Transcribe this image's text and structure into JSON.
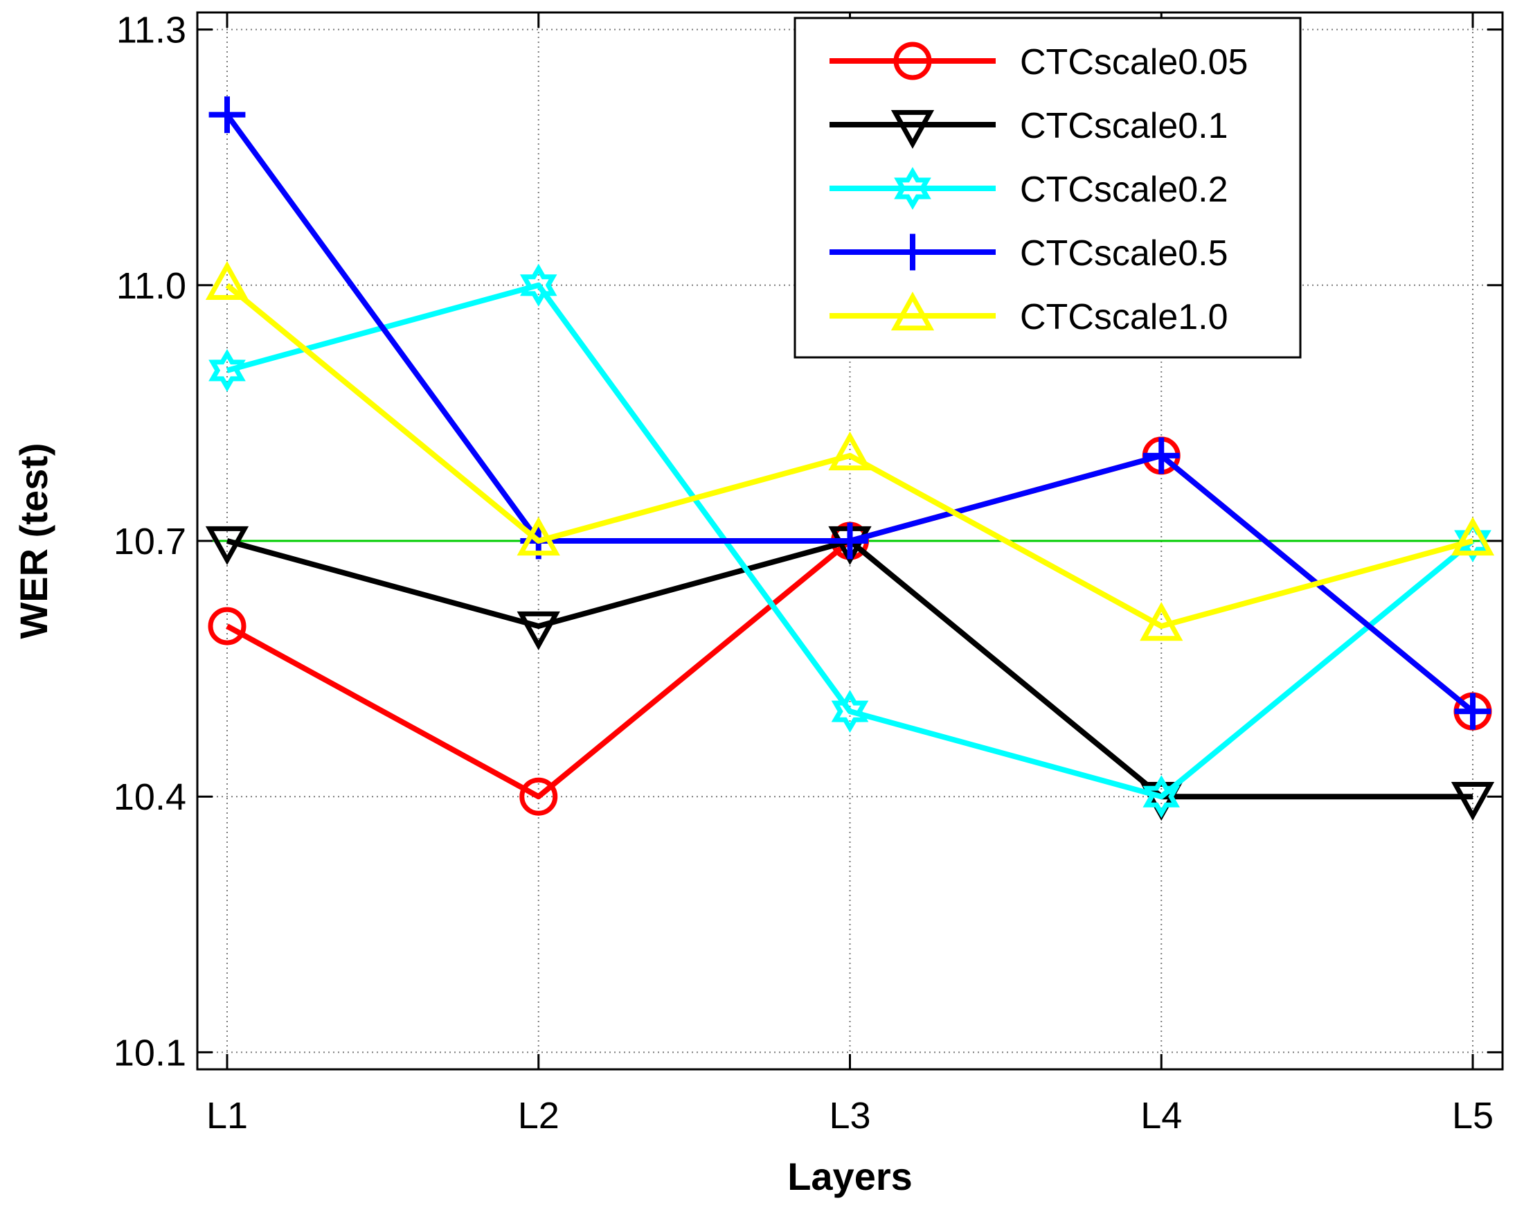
{
  "chart_data": {
    "type": "line",
    "xlabel": "Layers",
    "ylabel": "WER (test)",
    "categories": [
      "L1",
      "L2",
      "L3",
      "L4",
      "L5"
    ],
    "ylim": [
      10.08,
      11.32
    ],
    "yticks": [
      10.1,
      10.4,
      10.7,
      11.0,
      11.3
    ],
    "ytick_labels": [
      "10.1",
      "10.4",
      "10.7",
      "11.0",
      "11.3"
    ],
    "grid": true,
    "legend_position": "top-right",
    "reference_line": {
      "value": 10.7,
      "color": "#00cc00"
    },
    "series": [
      {
        "name": "CTCscale0.05",
        "color": "#ff0000",
        "marker": "circle",
        "values": [
          10.6,
          10.4,
          10.7,
          10.8,
          10.5
        ]
      },
      {
        "name": "CTCscale0.1",
        "color": "#000000",
        "marker": "triangle-down",
        "values": [
          10.7,
          10.6,
          10.7,
          10.4,
          10.4
        ]
      },
      {
        "name": "CTCscale0.2",
        "color": "#00ffff",
        "marker": "hexagram",
        "values": [
          10.9,
          11.0,
          10.5,
          10.4,
          10.7
        ]
      },
      {
        "name": "CTCscale0.5",
        "color": "#0000ff",
        "marker": "plus",
        "values": [
          11.2,
          10.7,
          10.7,
          10.8,
          10.5
        ]
      },
      {
        "name": "CTCscale1.0",
        "color": "#ffff00",
        "marker": "triangle-up",
        "values": [
          11.0,
          10.7,
          10.8,
          10.6,
          10.7
        ]
      }
    ]
  }
}
